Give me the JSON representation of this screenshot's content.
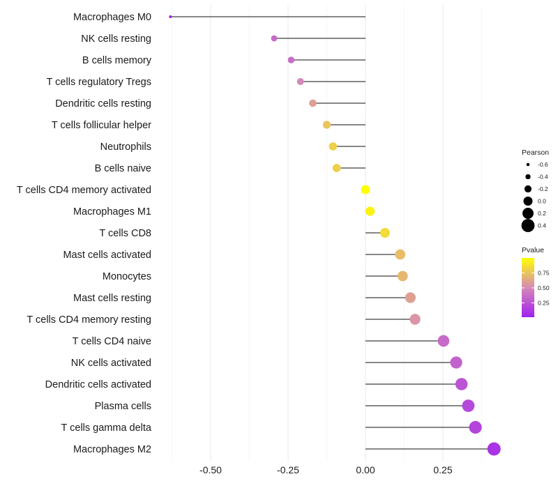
{
  "chart_data": {
    "type": "lollipop",
    "title": "",
    "xlabel": "",
    "ylabel": "",
    "xlim": [
      -0.63,
      0.42
    ],
    "xticks": [
      -0.5,
      -0.25,
      0.0,
      0.25
    ],
    "xtick_labels": [
      "-0.50",
      "-0.25",
      "0.00",
      "0.25"
    ],
    "categories": [
      "Macrophages M0",
      "NK cells resting",
      "B cells memory",
      "T cells regulatory  Tregs",
      "Dendritic cells resting",
      "T cells follicular helper",
      "Neutrophils",
      "B cells naive",
      "T cells CD4 memory activated",
      "Macrophages M1",
      "T cells CD8",
      "Mast cells activated",
      "Monocytes",
      "Mast cells resting",
      "T cells CD4 memory resting",
      "T cells CD4 naive",
      "NK cells activated",
      "Dendritic cells activated",
      "Plasma cells",
      "T cells gamma delta",
      "Macrophages M2"
    ],
    "pearson": [
      -0.63,
      -0.295,
      -0.24,
      -0.21,
      -0.17,
      -0.125,
      -0.105,
      -0.093,
      0.0,
      0.015,
      0.063,
      0.112,
      0.12,
      0.145,
      0.16,
      0.252,
      0.293,
      0.31,
      0.332,
      0.355,
      0.415
    ],
    "pvalue": [
      0.01,
      0.36,
      0.38,
      0.5,
      0.6,
      0.75,
      0.8,
      0.8,
      1.0,
      0.95,
      0.85,
      0.72,
      0.7,
      0.6,
      0.55,
      0.36,
      0.32,
      0.25,
      0.2,
      0.18,
      0.1
    ],
    "size_legend": {
      "title": "Pearson",
      "labels": [
        "-0.6",
        "-0.4",
        "-0.2",
        "0.0",
        "0.2",
        "0.4"
      ],
      "values": [
        -0.6,
        -0.4,
        -0.2,
        0.0,
        0.2,
        0.4
      ]
    },
    "color_legend": {
      "title": "Pvalue",
      "labels": [
        "0.75",
        "0.50",
        "0.25"
      ],
      "values": [
        0.75,
        0.5,
        0.25
      ],
      "range": [
        0.01,
        1.0
      ],
      "low_color": "#a020f0",
      "mid_color": "#d68ab7",
      "high_color": "#ffff00"
    },
    "colors": {
      "stem": "#3d3d3d",
      "grid": "#ebebeb",
      "legend_dot": "#000000"
    }
  }
}
